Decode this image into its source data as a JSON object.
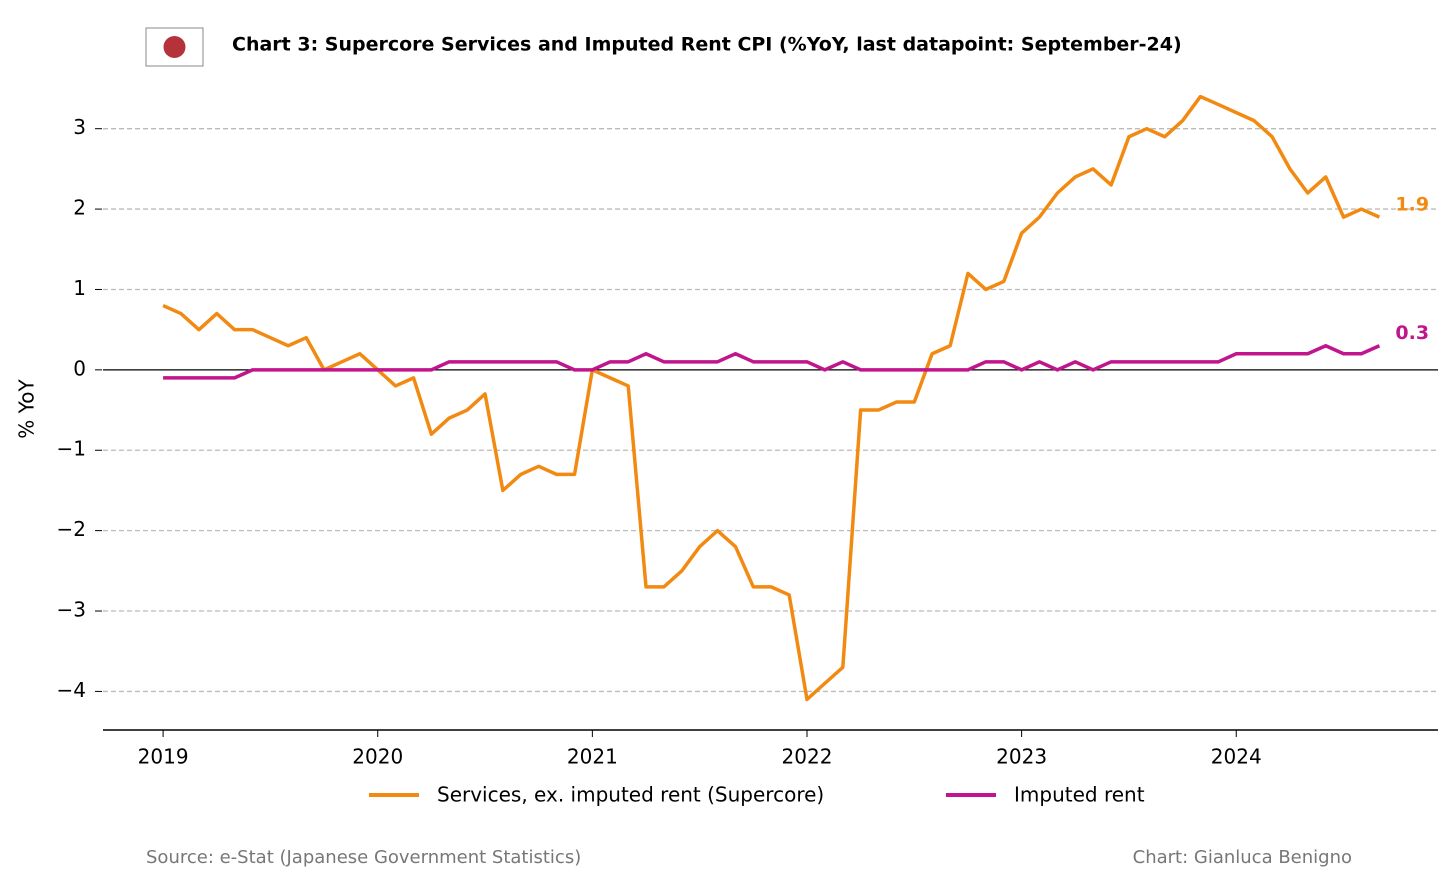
{
  "chart_data": {
    "type": "line",
    "title": "Chart 3: Supercore Services and Imputed Rent CPI (%YoY, last datapoint: September-24)",
    "ylabel": "% YoY",
    "source": "Source: e-Stat (Japanese Government Statistics)",
    "credit": "Chart: Gianluca Benigno",
    "x": [
      2019,
      2019.083,
      2019.167,
      2019.25,
      2019.333,
      2019.417,
      2019.5,
      2019.583,
      2019.667,
      2019.75,
      2019.833,
      2019.917,
      2020,
      2020.083,
      2020.167,
      2020.25,
      2020.333,
      2020.417,
      2020.5,
      2020.583,
      2020.667,
      2020.75,
      2020.833,
      2020.917,
      2021,
      2021.083,
      2021.167,
      2021.25,
      2021.333,
      2021.417,
      2021.5,
      2021.583,
      2021.667,
      2021.75,
      2021.833,
      2021.917,
      2022,
      2022.083,
      2022.167,
      2022.25,
      2022.333,
      2022.417,
      2022.5,
      2022.583,
      2022.667,
      2022.75,
      2022.833,
      2022.917,
      2023,
      2023.083,
      2023.167,
      2023.25,
      2023.333,
      2023.417,
      2023.5,
      2023.583,
      2023.667,
      2023.75,
      2023.833,
      2023.917,
      2024,
      2024.083,
      2024.167,
      2024.25,
      2024.333,
      2024.417,
      2024.5,
      2024.583,
      2024.667
    ],
    "series": [
      {
        "name": "Services, ex. imputed rent (Supercore)",
        "color": "#f28a12",
        "end_label": "1.9",
        "values": [
          0.8,
          0.7,
          0.5,
          0.7,
          0.5,
          0.5,
          0.4,
          0.3,
          0.4,
          0.0,
          0.1,
          0.2,
          0.0,
          -0.2,
          -0.1,
          -0.8,
          -0.6,
          -0.5,
          -0.3,
          -1.5,
          -1.3,
          -1.2,
          -1.3,
          -1.3,
          0.0,
          -0.1,
          -0.2,
          -2.7,
          -2.7,
          -2.5,
          -2.2,
          -2.0,
          -2.2,
          -2.7,
          -2.7,
          -2.8,
          -4.1,
          -3.9,
          -3.7,
          -0.5,
          -0.5,
          -0.4,
          -0.4,
          0.2,
          0.3,
          1.2,
          1.0,
          1.1,
          1.7,
          1.9,
          2.2,
          2.4,
          2.5,
          2.3,
          2.9,
          3.0,
          2.9,
          3.1,
          3.4,
          3.3,
          3.2,
          3.1,
          2.9,
          2.5,
          2.2,
          2.4,
          1.9,
          2.0,
          1.9
        ]
      },
      {
        "name": "Imputed rent",
        "color": "#c0158c",
        "end_label": "0.3",
        "values": [
          -0.1,
          -0.1,
          -0.1,
          -0.1,
          -0.1,
          0.0,
          0.0,
          0.0,
          0.0,
          0.0,
          0.0,
          0.0,
          0.0,
          0.0,
          0.0,
          0.0,
          0.1,
          0.1,
          0.1,
          0.1,
          0.1,
          0.1,
          0.1,
          0.0,
          0.0,
          0.1,
          0.1,
          0.2,
          0.1,
          0.1,
          0.1,
          0.1,
          0.2,
          0.1,
          0.1,
          0.1,
          0.1,
          0.0,
          0.1,
          0.0,
          0.0,
          0.0,
          0.0,
          0.0,
          0.0,
          0.0,
          0.1,
          0.1,
          0.0,
          0.1,
          0.0,
          0.1,
          0.0,
          0.1,
          0.1,
          0.1,
          0.1,
          0.1,
          0.1,
          0.1,
          0.2,
          0.2,
          0.2,
          0.2,
          0.2,
          0.3,
          0.2,
          0.2,
          0.3
        ]
      }
    ],
    "xlim": [
      2018.72,
      2024.94
    ],
    "xticks": [
      2019,
      2020,
      2021,
      2022,
      2023,
      2024
    ],
    "ylim": [
      -4.48,
      3.5
    ],
    "yticks": [
      {
        "value": -4,
        "label": "−4"
      },
      {
        "value": -3,
        "label": "−3"
      },
      {
        "value": -2,
        "label": "−2"
      },
      {
        "value": -1,
        "label": "−1"
      },
      0,
      1,
      2,
      3
    ],
    "grid": true,
    "legend": "bottom"
  }
}
